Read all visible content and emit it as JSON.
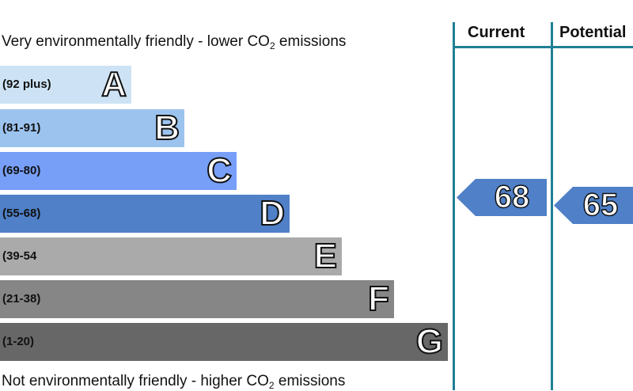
{
  "top_caption": {
    "text": "Very environmentally friendly - lower CO",
    "sub": "2",
    "tail": " emissions"
  },
  "bottom_caption": {
    "text": "Not environmentally friendly - higher CO",
    "sub": "2",
    "tail": " emissions"
  },
  "columns": {
    "current": "Current",
    "potential": "Potential"
  },
  "bands": [
    {
      "range": "(92 plus)",
      "letter": "A",
      "color": "#cde3f5"
    },
    {
      "range": "(81-91)",
      "letter": "B",
      "color": "#9cc3ee"
    },
    {
      "range": "(69-80)",
      "letter": "C",
      "color": "#779ff7"
    },
    {
      "range": "(55-68)",
      "letter": "D",
      "color": "#4f80c8"
    },
    {
      "range": "(39-54",
      "letter": "E",
      "color": "#aaaaaa"
    },
    {
      "range": "(21-38)",
      "letter": "F",
      "color": "#868686"
    },
    {
      "range": "(1-20)",
      "letter": "G",
      "color": "#676767"
    }
  ],
  "ratings": {
    "current": {
      "value": "68",
      "band": "D",
      "color": "#4f80c8"
    },
    "potential": {
      "value": "65",
      "band": "D",
      "color": "#4f80c8"
    }
  },
  "border_color": "#1f7f95"
}
